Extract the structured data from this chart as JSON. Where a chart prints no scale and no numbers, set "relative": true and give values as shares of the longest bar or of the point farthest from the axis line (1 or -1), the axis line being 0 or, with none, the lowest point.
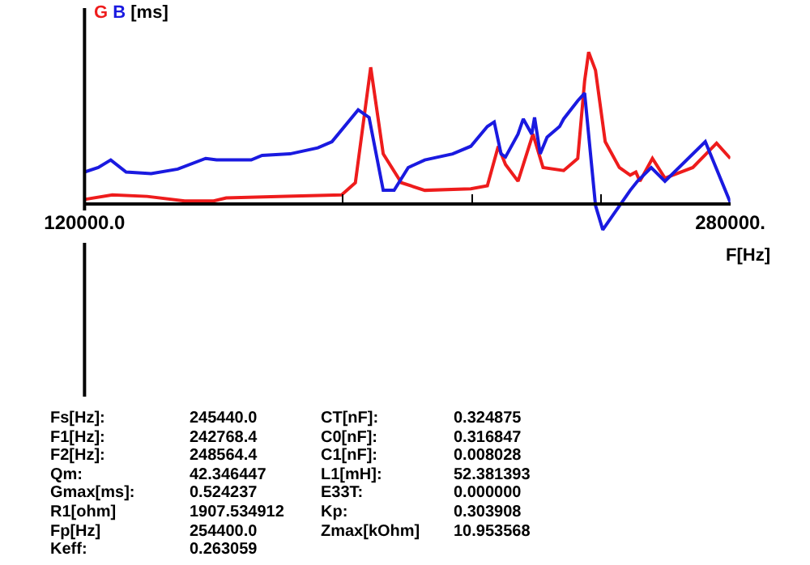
{
  "chart_data": {
    "type": "line",
    "relative": true,
    "xlabel": "F[Hz]",
    "ylabel": "[ms]",
    "legend": false,
    "xlim": [
      120000,
      280000
    ],
    "xticks": [
      {
        "value": 120000,
        "label": "120000.0"
      },
      {
        "value": 184000,
        "label": null
      },
      {
        "value": 216000,
        "label": null
      },
      {
        "value": 248000,
        "label": null
      },
      {
        "value": 280000,
        "label": "280000."
      }
    ],
    "series": [
      {
        "name": "G",
        "color": "#ee1c1c",
        "x": [
          120000,
          126900,
          135500,
          144800,
          152000,
          155100,
          169900,
          183700,
          187100,
          190900,
          194000,
          198500,
          204300,
          215700,
          219800,
          222500,
          224300,
          227400,
          231100,
          233600,
          238700,
          242200,
          243900,
          244900,
          246600,
          249000,
          252500,
          255200,
          256600,
          257600,
          260700,
          263800,
          270700,
          276600,
          280000
        ],
        "values": [
          0.03,
          0.06,
          0.05,
          0.02,
          0.02,
          0.04,
          0.05,
          0.06,
          0.14,
          0.9,
          0.33,
          0.14,
          0.09,
          0.1,
          0.12,
          0.38,
          0.26,
          0.15,
          0.46,
          0.24,
          0.22,
          0.3,
          0.81,
          1,
          0.88,
          0.41,
          0.24,
          0.19,
          0.21,
          0.15,
          0.3,
          0.17,
          0.24,
          0.4,
          0.3
        ]
      },
      {
        "name": "B",
        "color": "#1a1ae0",
        "x": [
          120000,
          123400,
          126500,
          130300,
          136500,
          143100,
          150000,
          152700,
          161300,
          164000,
          170900,
          177800,
          181300,
          187800,
          190500,
          194000,
          196700,
          200200,
          204300,
          211200,
          215700,
          219800,
          221500,
          223200,
          224300,
          227400,
          228700,
          230800,
          231500,
          232900,
          234600,
          237700,
          238700,
          242200,
          243900,
          246600,
          248400,
          255200,
          257000,
          260400,
          263800,
          273800,
          280000
        ],
        "values": [
          0.21,
          0.24,
          0.29,
          0.21,
          0.2,
          0.23,
          0.3,
          0.29,
          0.29,
          0.32,
          0.33,
          0.37,
          0.41,
          0.62,
          0.57,
          0.09,
          0.09,
          0.24,
          0.29,
          0.33,
          0.38,
          0.51,
          0.54,
          0.33,
          0.31,
          0.46,
          0.56,
          0.46,
          0.57,
          0.33,
          0.44,
          0.51,
          0.56,
          0.68,
          0.73,
          -0.01,
          -0.17,
          0.09,
          0.15,
          0.24,
          0.15,
          0.41,
          0.01
        ]
      }
    ],
    "annotations": [
      "Fs[Hz]:",
      "245440.0",
      "CT[nF]:",
      "0.324875",
      "F1[Hz]:",
      "242768.4",
      "C0[nF]:",
      "0.316847",
      "F2[Hz]:",
      "248564.4",
      "C1[nF]:",
      "0.008028",
      "Qm:",
      "42.346447",
      "L1[mH]:",
      "52.381393",
      "Gmax[ms]:",
      "0.524237",
      "E33T:",
      "0.000000",
      "R1[ohm]",
      "1907.534912",
      "Kp:",
      "0.303908",
      "Fp[Hz]",
      "254400.0",
      "Zmax[kOhm]",
      "10.953568",
      "Keff:",
      "0.263059"
    ]
  }
}
